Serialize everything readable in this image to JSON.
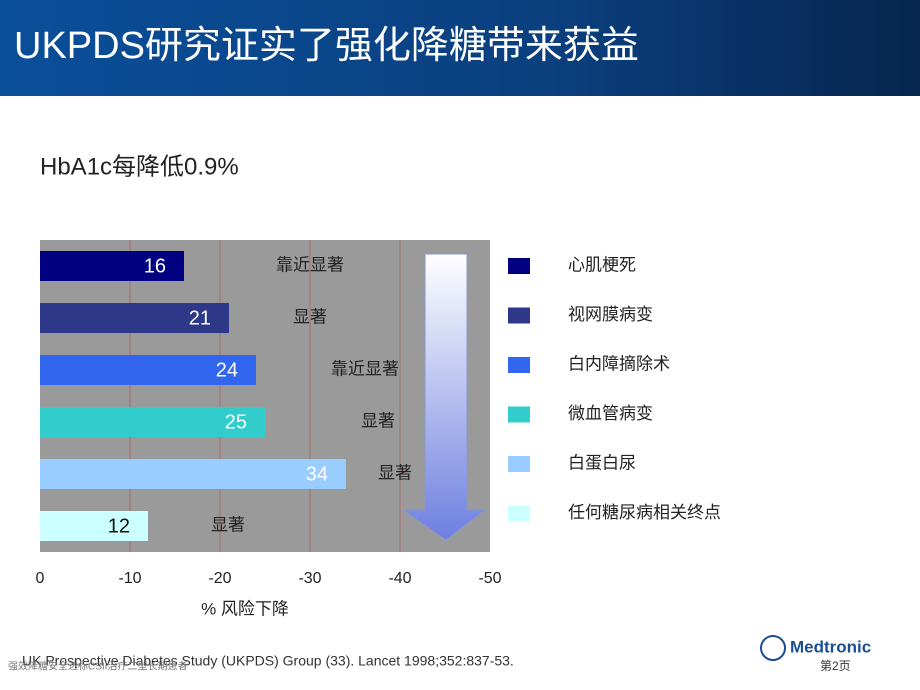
{
  "header": {
    "title": "UKPDS研究证实了强化降糖带来获益"
  },
  "chart_data": {
    "type": "bar",
    "orientation": "horizontal",
    "title": "HbA1c每降低0.9%",
    "categories": [
      "心肌梗死",
      "视网膜病变",
      "白内障摘除术",
      "微血管病变",
      "白蛋白尿",
      "任何糖尿病相关终点"
    ],
    "values": [
      -16,
      -21,
      -24,
      -25,
      -34,
      -12
    ],
    "value_labels": [
      "16",
      "21",
      "24",
      "25",
      "34",
      "12"
    ],
    "colors": [
      "#000080",
      "#2e3888",
      "#3366ee",
      "#33cccc",
      "#99ccff",
      "#ccffff"
    ],
    "annotations": [
      "靠近显著",
      "显著",
      "靠近显著",
      "显著",
      "显著",
      "显著"
    ],
    "xlim": [
      0,
      -50
    ],
    "xticks": [
      0,
      -10,
      -20,
      -30,
      -40,
      -50
    ],
    "xlabel": "% 风险下降",
    "grid": true
  },
  "footer": {
    "citation": "UK Prospective Diabetes Study (UKPDS) Group (33). Lancet 1998;352:837-53.",
    "note": "强效降糖安全达标CSII治疗二型长期患者",
    "brand": "Medtronic",
    "page": "第2页"
  }
}
